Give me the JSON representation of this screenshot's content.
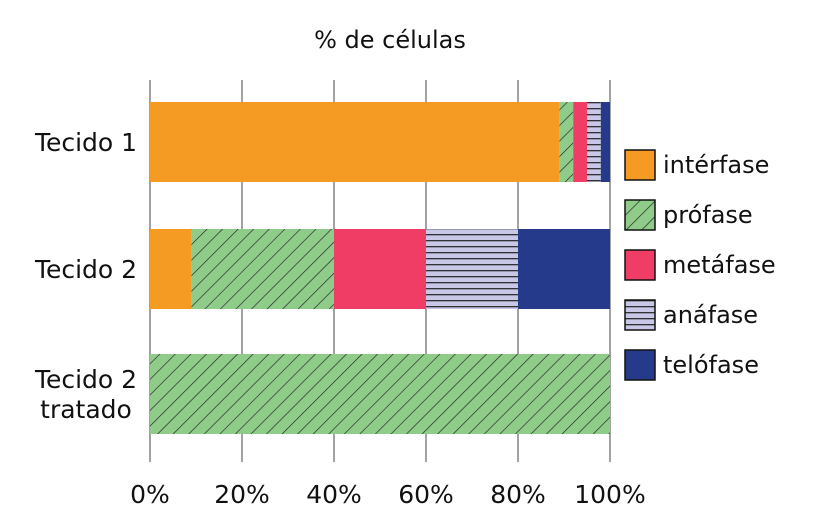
{
  "chart_data": {
    "type": "bar",
    "orientation": "horizontal",
    "stacked": true,
    "title": "% de células",
    "title_position": "top",
    "xlabel": "",
    "ylabel": "",
    "xlim": [
      0,
      100
    ],
    "x_ticks": [
      "0%",
      "20%",
      "40%",
      "60%",
      "80%",
      "100%"
    ],
    "x_tick_values": [
      0,
      20,
      40,
      60,
      80,
      100
    ],
    "grid": "vertical",
    "legend_position": "right",
    "categories": [
      {
        "lines": [
          "Tecido 1"
        ]
      },
      {
        "lines": [
          "Tecido 2"
        ]
      },
      {
        "lines": [
          "Tecido 2",
          "tratado"
        ]
      }
    ],
    "series": [
      {
        "name": "intérfase",
        "color": "#f59a23",
        "pattern": "solid",
        "values": [
          89,
          9,
          0
        ]
      },
      {
        "name": "prófase",
        "color": "#8fcc8a",
        "pattern": "diagonal-hatch",
        "values": [
          3,
          31,
          100
        ]
      },
      {
        "name": "metáfase",
        "color": "#ef3d66",
        "pattern": "solid",
        "values": [
          3,
          20,
          0
        ]
      },
      {
        "name": "anáfase",
        "color": "#c8c8e6",
        "pattern": "horizontal-lines",
        "values": [
          3,
          20,
          0
        ]
      },
      {
        "name": "telófase",
        "color": "#263a8c",
        "pattern": "solid",
        "values": [
          2,
          20,
          0
        ]
      }
    ]
  }
}
